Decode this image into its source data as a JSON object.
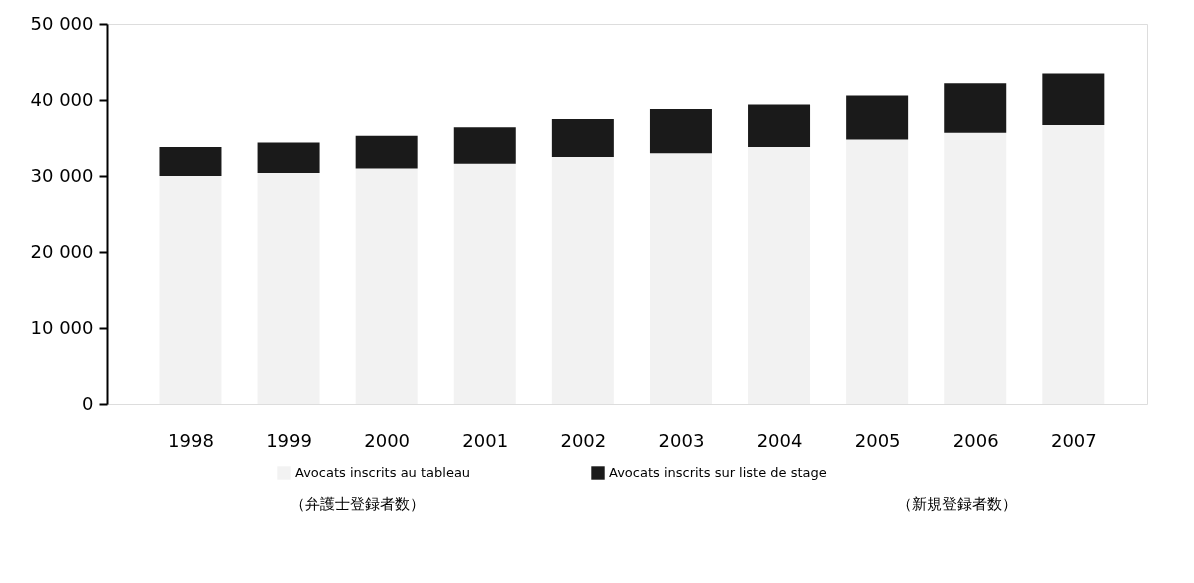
{
  "chart_data": {
    "type": "bar",
    "stacked": true,
    "categories": [
      "1998",
      "1999",
      "2000",
      "2001",
      "2002",
      "2003",
      "2004",
      "2005",
      "2006",
      "2007"
    ],
    "series": [
      {
        "name": "Avocats inscrits au tableau",
        "color": "#f2f2f2",
        "values": [
          30000,
          30400,
          31000,
          31600,
          32500,
          33000,
          33800,
          34800,
          35700,
          36700
        ]
      },
      {
        "name": "Avocats inscrits sur liste de stage",
        "color": "#1a1a1a",
        "values": [
          3800,
          4000,
          4300,
          4800,
          5000,
          5800,
          5600,
          5800,
          6500,
          6800
        ]
      }
    ],
    "ylim": [
      0,
      50000
    ],
    "yticks": [
      {
        "value": 0,
        "label": "0"
      },
      {
        "value": 10000,
        "label": "10 000"
      },
      {
        "value": 20000,
        "label": "20 000"
      },
      {
        "value": 30000,
        "label": "30 000"
      },
      {
        "value": 40000,
        "label": "40 000"
      },
      {
        "value": 50000,
        "label": "50 000"
      }
    ],
    "grid": false,
    "legend": "bottom",
    "annotations": [
      "（弁護士登録者数）",
      "（新規登録者数）"
    ]
  }
}
